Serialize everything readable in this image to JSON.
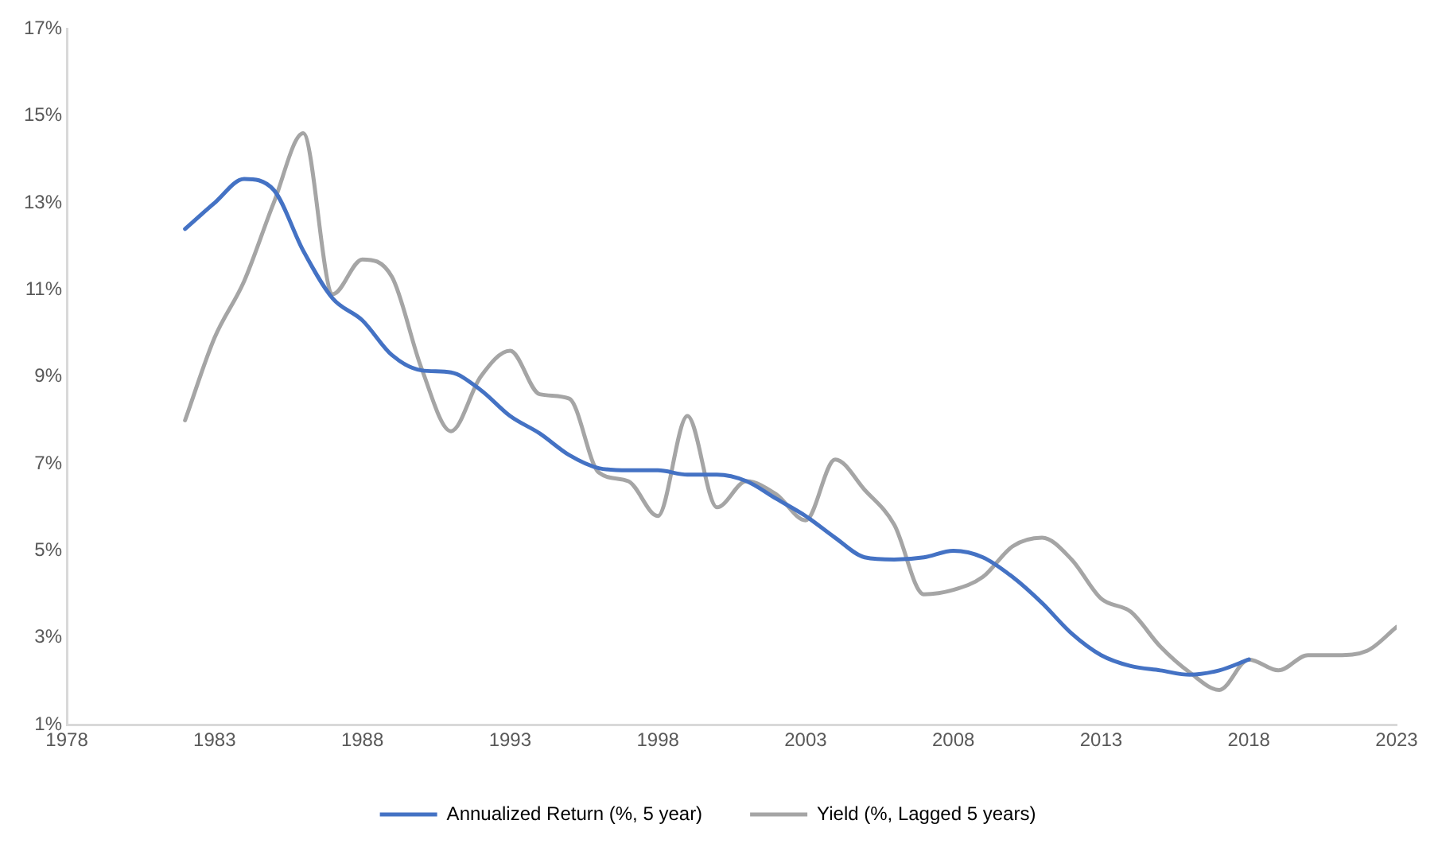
{
  "chart_data": {
    "type": "line",
    "x": [
      1982,
      1983,
      1984,
      1985,
      1986,
      1987,
      1988,
      1989,
      1990,
      1991,
      1992,
      1993,
      1994,
      1995,
      1996,
      1997,
      1998,
      1999,
      2000,
      2001,
      2002,
      2003,
      2004,
      2005,
      2006,
      2007,
      2008,
      2009,
      2010,
      2011,
      2012,
      2013,
      2014,
      2015,
      2016,
      2017,
      2018,
      2019,
      2020,
      2021,
      2022,
      2023
    ],
    "series": [
      {
        "name": "Annualized Return (%, 5 year)",
        "color": "#4472c4",
        "values": [
          12.4,
          13.0,
          13.55,
          13.3,
          11.9,
          10.8,
          10.3,
          9.5,
          9.15,
          9.1,
          8.7,
          8.1,
          7.7,
          7.2,
          6.9,
          6.85,
          6.85,
          6.75,
          6.75,
          6.6,
          6.2,
          5.8,
          5.3,
          4.85,
          4.8,
          4.85,
          5.0,
          4.85,
          4.4,
          3.8,
          3.1,
          2.6,
          2.35,
          2.25,
          2.15,
          2.25,
          2.5,
          null,
          null,
          null,
          null,
          null
        ]
      },
      {
        "name": "Yield (%, Lagged 5 years)",
        "color": "#a5a5a5",
        "values": [
          8.0,
          9.9,
          11.2,
          13.0,
          14.6,
          10.9,
          11.7,
          11.3,
          9.2,
          7.75,
          9.0,
          9.6,
          8.6,
          8.5,
          6.8,
          6.6,
          5.8,
          8.1,
          6.0,
          6.6,
          6.3,
          5.7,
          7.1,
          6.4,
          5.6,
          4.0,
          4.1,
          4.4,
          5.1,
          5.3,
          4.8,
          3.9,
          3.6,
          2.8,
          2.2,
          1.8,
          2.5,
          2.25,
          2.6,
          2.6,
          2.7,
          3.25
        ]
      }
    ],
    "xlim": [
      1978,
      2023
    ],
    "xticks": [
      1978,
      1983,
      1988,
      1993,
      1998,
      2003,
      2008,
      2013,
      2018,
      2023
    ],
    "ylim": [
      1,
      17
    ],
    "yticks": [
      {
        "value": 1,
        "label": "1%"
      },
      {
        "value": 3,
        "label": "3%"
      },
      {
        "value": 5,
        "label": "5%"
      },
      {
        "value": 7,
        "label": "7%"
      },
      {
        "value": 9,
        "label": "9%"
      },
      {
        "value": 11,
        "label": "11%"
      },
      {
        "value": 13,
        "label": "13%"
      },
      {
        "value": 15,
        "label": "15%"
      },
      {
        "value": 17,
        "label": "17%"
      }
    ],
    "grid": false,
    "legend": "bottom",
    "marker": "none",
    "line_style": "solid"
  }
}
